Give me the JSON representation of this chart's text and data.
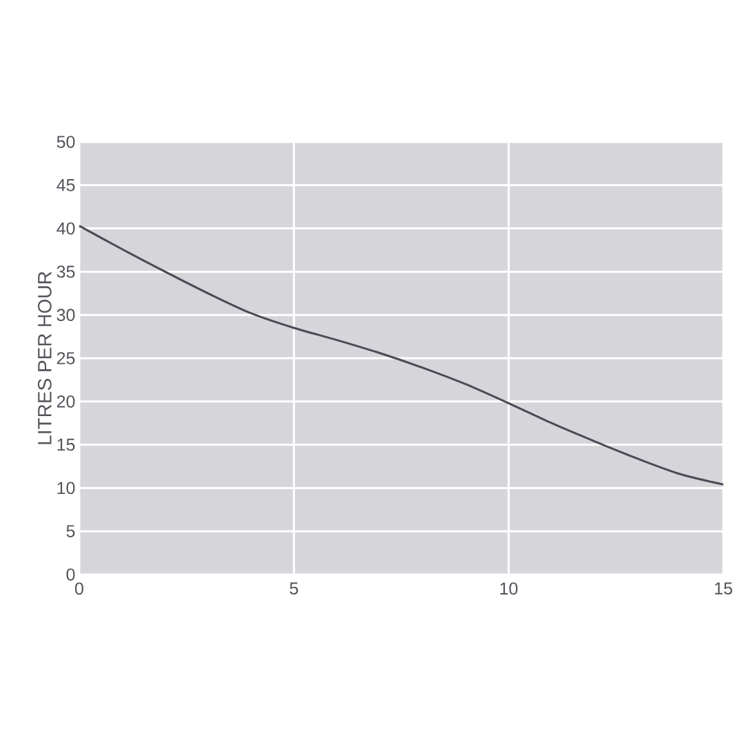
{
  "chart_data": {
    "type": "line",
    "ylabel": "LITRES PER HOUR",
    "x": [
      0,
      1,
      2,
      3,
      4,
      5,
      6,
      7,
      8,
      9,
      10,
      11,
      12,
      13,
      14,
      15
    ],
    "values": [
      40.3,
      37.6,
      35.0,
      32.5,
      30.2,
      28.5,
      27.1,
      25.6,
      23.9,
      22.0,
      19.8,
      17.5,
      15.4,
      13.4,
      11.6,
      10.4
    ],
    "color": "#4a4a55",
    "xlim": [
      0,
      15
    ],
    "ylim": [
      0,
      50
    ],
    "xticks": [
      0,
      5,
      10,
      15
    ],
    "yticks": [
      0,
      5,
      10,
      15,
      20,
      25,
      30,
      35,
      40,
      45,
      50
    ],
    "grid": true
  }
}
